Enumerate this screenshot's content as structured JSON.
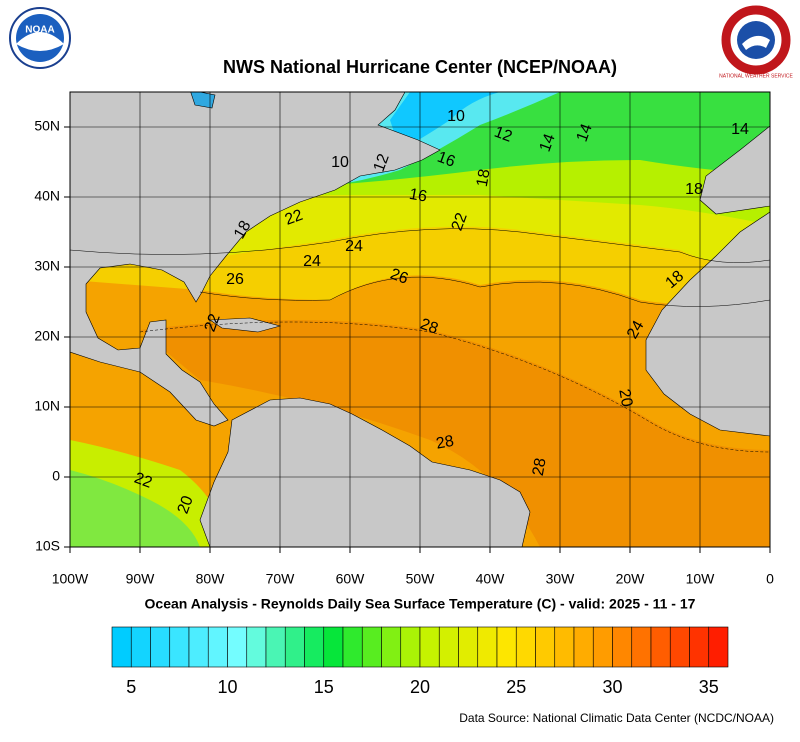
{
  "header": {
    "title": "NWS National Hurricane Center (NCEP/NOAA)",
    "left_logo": "NOAA",
    "right_logo": "NATIONAL WEATHER SERVICE"
  },
  "map": {
    "lat_labels": [
      "50N",
      "40N",
      "30N",
      "20N",
      "10N",
      "0",
      "10S"
    ],
    "lon_labels": [
      "100W",
      "90W",
      "80W",
      "70W",
      "60W",
      "50W",
      "40W",
      "30W",
      "20W",
      "10W",
      "0"
    ],
    "contour_labels": [
      "10",
      "12",
      "14",
      "14",
      "14",
      "10",
      "12",
      "16",
      "18",
      "16",
      "18",
      "22",
      "18",
      "22",
      "24",
      "24",
      "26",
      "26",
      "18",
      "22",
      "28",
      "24",
      "20",
      "28",
      "28",
      "22",
      "20"
    ]
  },
  "caption": "Ocean Analysis - Reynolds Daily Sea Surface Temperature (C) - valid: 2025 - 11 - 17",
  "colorbar": {
    "labels": [
      "5",
      "10",
      "15",
      "20",
      "25",
      "30",
      "35"
    ]
  },
  "source": "Data Source: National Climatic Data Center (NCDC/NOAA)"
}
